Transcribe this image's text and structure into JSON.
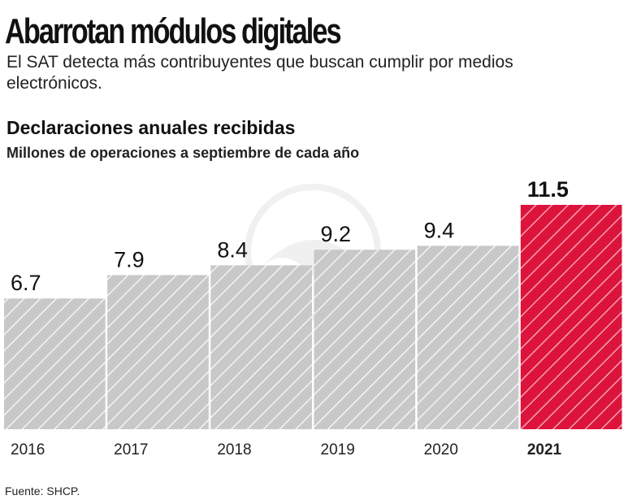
{
  "header": {
    "title": "Abarrotan módulos digitales",
    "subtitle": "El SAT detecta más contribuyentes que buscan cumplir por medios electrónicos."
  },
  "footer": {
    "source": "Fuente: SHCP."
  },
  "colors": {
    "bar_default": "#c8c8c8",
    "bar_highlight": "#dc143c",
    "hatch": "#ffffff",
    "text": "#111111"
  },
  "chart_data": {
    "type": "bar",
    "title": "Declaraciones anuales recibidas",
    "subtitle": "Millones de operaciones a septiembre de cada año",
    "xlabel": "",
    "ylabel": "",
    "categories": [
      "2016",
      "2017",
      "2018",
      "2019",
      "2020",
      "2021"
    ],
    "values": [
      6.7,
      7.9,
      8.4,
      9.2,
      9.4,
      11.5
    ],
    "value_labels": [
      "6.7",
      "7.9",
      "8.4",
      "9.2",
      "9.4",
      "11.5"
    ],
    "highlight": "2021",
    "ylim": [
      0,
      11.5
    ],
    "grid": false,
    "legend": "none"
  }
}
